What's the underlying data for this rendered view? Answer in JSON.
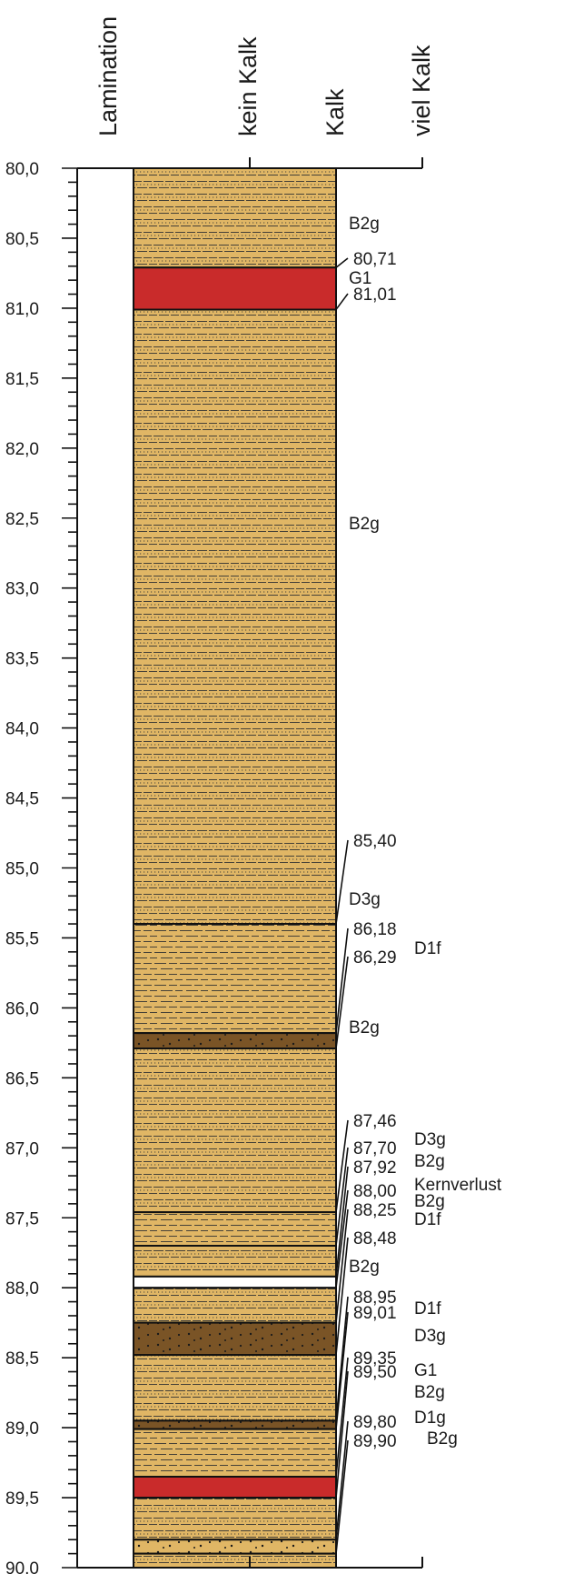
{
  "colors": {
    "layer_fill": "#e0b665",
    "red_fill": "#c92b2b",
    "dark_fill": "#7a5426",
    "frame": "#111111",
    "hatch": "#333333"
  },
  "header": {
    "columns": [
      {
        "key": "lamination",
        "label": "Lamination"
      },
      {
        "key": "kein_kalk",
        "label": "kein Kalk"
      },
      {
        "key": "kalk",
        "label": "Kalk"
      },
      {
        "key": "viel_kalk",
        "label": "viel Kalk"
      }
    ]
  },
  "depth_axis": {
    "min": 80.0,
    "max": 90.0,
    "major_step": 0.5,
    "minor_step": 0.1,
    "labels": [
      "80,0",
      "80,5",
      "81,0",
      "81,5",
      "82,0",
      "82,5",
      "83,0",
      "83,5",
      "84,0",
      "84,5",
      "85,0",
      "85,5",
      "86,0",
      "86,5",
      "87,0",
      "87,5",
      "88,0",
      "88,5",
      "89,0",
      "89,5",
      "90,0"
    ]
  },
  "layers": [
    {
      "top": 80.0,
      "bottom": 80.71,
      "unit": "B2g",
      "pattern": "silt",
      "color": "layer"
    },
    {
      "top": 80.71,
      "bottom": 81.01,
      "unit": "G1",
      "pattern": "none",
      "color": "red"
    },
    {
      "top": 81.01,
      "bottom": 85.4,
      "unit": "B2g",
      "pattern": "silt",
      "color": "layer"
    },
    {
      "top": 85.4,
      "bottom": 86.18,
      "unit": "D3g",
      "pattern": "clay",
      "color": "layer"
    },
    {
      "top": 86.18,
      "bottom": 86.29,
      "unit": "D1f",
      "pattern": "dots",
      "color": "dark"
    },
    {
      "top": 86.29,
      "bottom": 87.46,
      "unit": "B2g",
      "pattern": "silt",
      "color": "layer"
    },
    {
      "top": 87.46,
      "bottom": 87.7,
      "unit": "D3g",
      "pattern": "clay",
      "color": "layer"
    },
    {
      "top": 87.7,
      "bottom": 87.92,
      "unit": "B2g",
      "pattern": "silt",
      "color": "layer"
    },
    {
      "top": 87.92,
      "bottom": 88.0,
      "unit": "Kernverlust",
      "pattern": "none",
      "color": "gap"
    },
    {
      "top": 88.0,
      "bottom": 88.25,
      "unit": "B2g",
      "pattern": "silt",
      "color": "layer"
    },
    {
      "top": 88.25,
      "bottom": 88.48,
      "unit": "D1f",
      "pattern": "dots",
      "color": "dark"
    },
    {
      "top": 88.48,
      "bottom": 88.95,
      "unit": "B2g",
      "pattern": "silt",
      "color": "layer"
    },
    {
      "top": 88.95,
      "bottom": 89.01,
      "unit": "D1f",
      "pattern": "dots",
      "color": "dark"
    },
    {
      "top": 89.01,
      "bottom": 89.35,
      "unit": "D3g",
      "pattern": "clay",
      "color": "layer"
    },
    {
      "top": 89.35,
      "bottom": 89.5,
      "unit": "G1",
      "pattern": "none",
      "color": "red"
    },
    {
      "top": 89.5,
      "bottom": 89.8,
      "unit": "B2g",
      "pattern": "silt",
      "color": "layer"
    },
    {
      "top": 89.8,
      "bottom": 89.9,
      "unit": "D1g",
      "pattern": "dots",
      "color": "layer"
    },
    {
      "top": 89.9,
      "bottom": 90.0,
      "unit": "B2g",
      "pattern": "silt",
      "color": "layer"
    }
  ],
  "depth_labels": [
    {
      "value": 80.71,
      "text": "80,71"
    },
    {
      "value": 81.01,
      "text": "81,01"
    },
    {
      "value": 85.4,
      "text": "85,40"
    },
    {
      "value": 86.18,
      "text": "86,18"
    },
    {
      "value": 86.29,
      "text": "86,29"
    },
    {
      "value": 87.46,
      "text": "87,46"
    },
    {
      "value": 87.7,
      "text": "87,70"
    },
    {
      "value": 87.92,
      "text": "87,92"
    },
    {
      "value": 88.0,
      "text": "88,00"
    },
    {
      "value": 88.25,
      "text": "88,25"
    },
    {
      "value": 88.48,
      "text": "88,48"
    },
    {
      "value": 88.95,
      "text": "88,95"
    },
    {
      "value": 89.01,
      "text": "89,01"
    },
    {
      "value": 89.35,
      "text": "89,35"
    },
    {
      "value": 89.5,
      "text": "89,50"
    },
    {
      "value": 89.8,
      "text": "89,80"
    },
    {
      "value": 89.9,
      "text": "89,90"
    }
  ],
  "unit_labels": [
    {
      "text": "B2g",
      "at": 80.4
    },
    {
      "text": "G1",
      "at": 80.86
    },
    {
      "text": "B2g",
      "at": 82.85
    },
    {
      "text": "D3g",
      "at": 85.85
    },
    {
      "text": "D1f",
      "at": 86.23
    },
    {
      "text": "B2g",
      "at": 86.9
    },
    {
      "text": "D3g",
      "at": 87.62
    },
    {
      "text": "B2g",
      "at": 87.83
    },
    {
      "text": "Kernverlust",
      "at": 88.04
    },
    {
      "text": "B2g",
      "at": 88.29
    },
    {
      "text": "D1f",
      "at": 88.51
    },
    {
      "text": "B2g",
      "at": 88.74
    },
    {
      "text": "D1f",
      "at": 89.04
    },
    {
      "text": "D3g",
      "at": 89.25
    },
    {
      "text": "G1",
      "at": 89.45
    },
    {
      "text": "B2g",
      "at": 89.64
    },
    {
      "text": "D1g",
      "at": 89.81
    },
    {
      "text": "B2g",
      "at": 89.99
    }
  ]
}
